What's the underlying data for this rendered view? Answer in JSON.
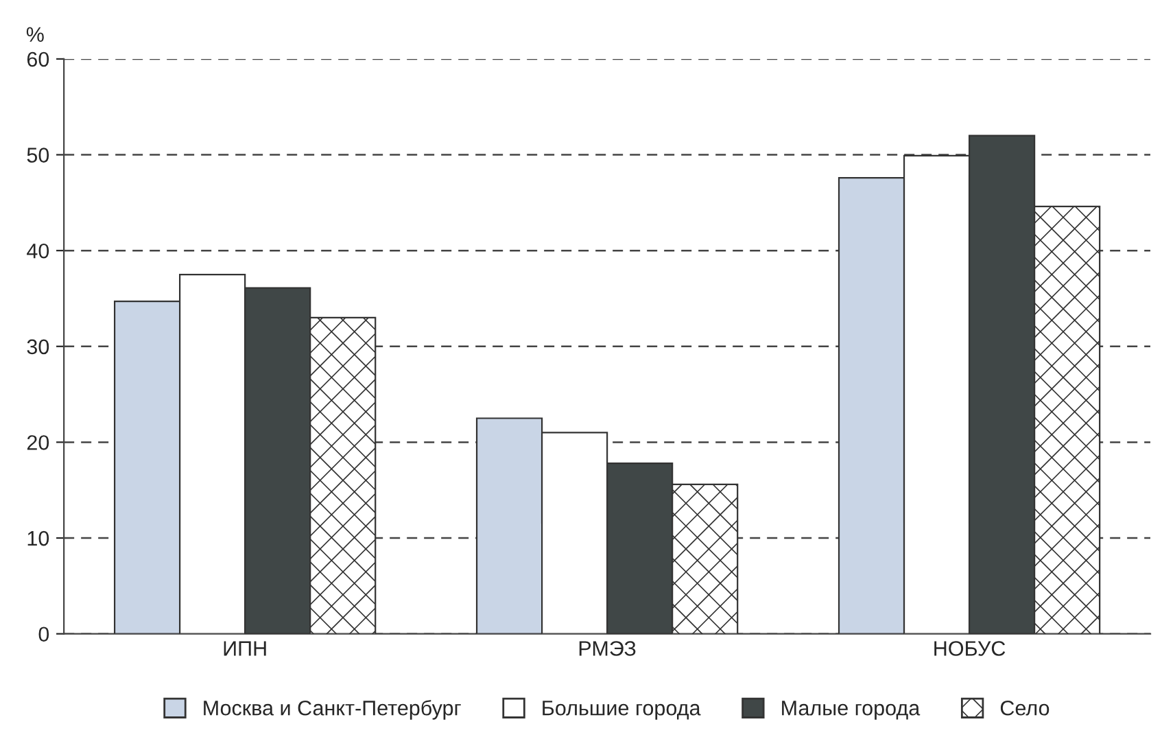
{
  "chart_data": {
    "type": "bar",
    "ylabel": "%",
    "categories": [
      "ИПН",
      "РМЭЗ",
      "НОБУС"
    ],
    "series": [
      {
        "name": "Москва и Санкт-Петербург",
        "color": "#c9d5e6",
        "values": [
          34.7,
          22.5,
          47.6
        ]
      },
      {
        "name": "Большие города",
        "color": "#ffffff",
        "values": [
          37.5,
          21.0,
          49.9
        ]
      },
      {
        "name": "Малые города",
        "color": "#404747",
        "values": [
          36.1,
          17.8,
          52.0
        ]
      },
      {
        "name": "Село",
        "color": "#333333",
        "values": [
          33.0,
          15.6,
          44.6
        ]
      }
    ],
    "ylim": [
      0,
      60
    ],
    "yticks": [
      0,
      10,
      20,
      30,
      40,
      50,
      60
    ],
    "grid": "y",
    "legend": "bottom"
  }
}
